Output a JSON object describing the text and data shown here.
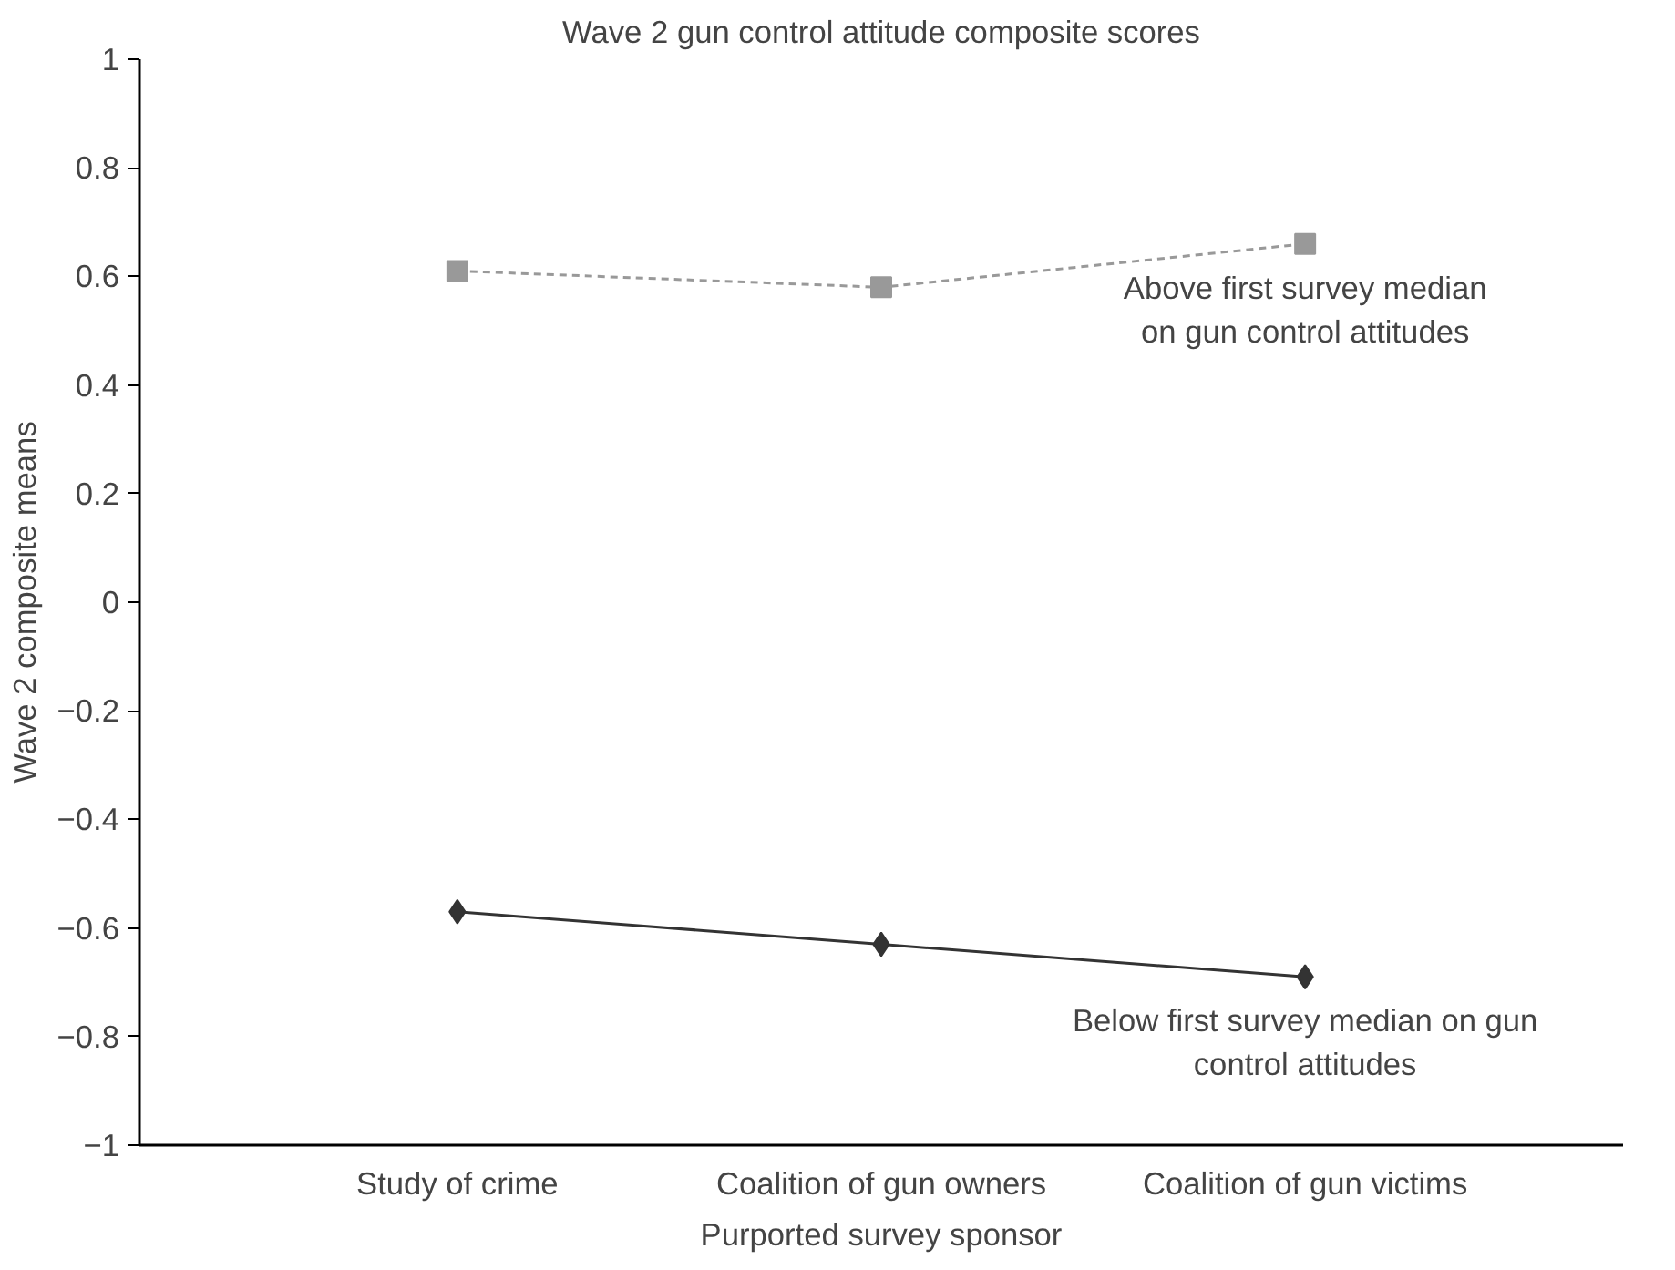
{
  "chart_data": {
    "type": "line",
    "title": "Wave 2 gun control attitude composite scores",
    "xlabel": "Purported survey sponsor",
    "ylabel": "Wave 2 composite means",
    "categories": [
      "Study of crime",
      "Coalition of gun owners",
      "Coalition of gun victims"
    ],
    "series": [
      {
        "color": "#999999",
        "marker": "square",
        "line_style": "dashed",
        "values": [
          0.61,
          0.58,
          0.66
        ]
      },
      {
        "color": "#333333",
        "marker": "diamond",
        "line_style": "solid",
        "values": [
          -0.57,
          -0.63,
          -0.69
        ]
      }
    ],
    "ylim": [
      -1,
      1
    ],
    "yticks": [
      {
        "value": -1,
        "label": "−1"
      },
      {
        "value": -0.8,
        "label": "−0.8"
      },
      {
        "value": -0.6,
        "label": "−0.6"
      },
      {
        "value": -0.4,
        "label": "−0.4"
      },
      {
        "value": -0.2,
        "label": "−0.2"
      },
      0,
      0.2,
      0.4,
      0.6,
      0.8,
      1
    ],
    "annotations": [
      {
        "text": "Above first survey median\non gun control attitudes",
        "x": "Coalition of gun victims",
        "y": 0.66
      },
      {
        "text": "Below first survey median on gun\ncontrol attitudes",
        "x": "Coalition of gun victims",
        "y": -0.69
      }
    ]
  }
}
